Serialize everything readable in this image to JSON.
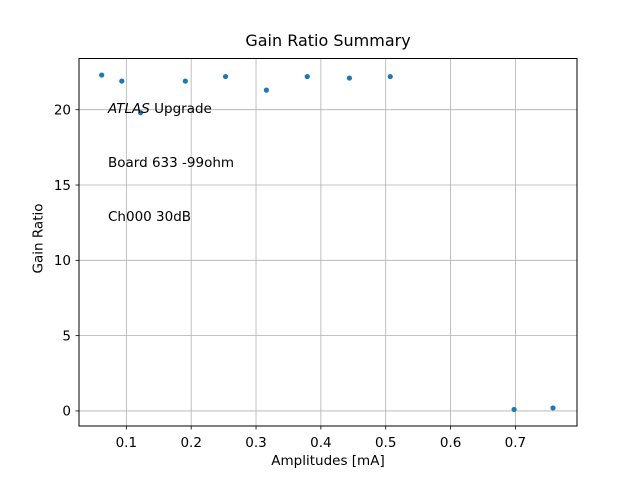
{
  "chart_data": {
    "type": "scatter",
    "title": "Gain Ratio Summary",
    "xlabel": "Amplitudes [mA]",
    "ylabel": "Gain Ratio",
    "xlim": [
      0.027,
      0.795
    ],
    "ylim": [
      -1.0,
      23.4
    ],
    "xtick_values": [
      0.1,
      0.2,
      0.3,
      0.4,
      0.5,
      0.6,
      0.7
    ],
    "xtick_labels": [
      "0.1",
      "0.2",
      "0.3",
      "0.4",
      "0.5",
      "0.6",
      "0.7"
    ],
    "ytick_values": [
      0,
      5,
      10,
      15,
      20
    ],
    "ytick_labels": [
      "0",
      "5",
      "10",
      "15",
      "20"
    ],
    "grid": true,
    "legend": "none",
    "series": [
      {
        "name": "gain-ratio-points",
        "x": [
          0.062,
          0.093,
          0.122,
          0.191,
          0.253,
          0.316,
          0.379,
          0.444,
          0.507,
          0.698,
          0.758
        ],
        "y": [
          22.3,
          21.9,
          19.8,
          21.9,
          22.2,
          21.3,
          22.2,
          22.1,
          22.2,
          0.1,
          0.2
        ]
      }
    ],
    "annotation": {
      "line1_italic": "ATLAS",
      "line1_rest": " Upgrade",
      "line2": "Board 633 -99ohm",
      "line3": "Ch000 30dB"
    },
    "colors": {
      "marker": "#1f77b4",
      "grid": "#b0b0b0",
      "spine": "#000000",
      "tick": "#000000",
      "text": "#000000",
      "background": "#ffffff"
    }
  }
}
